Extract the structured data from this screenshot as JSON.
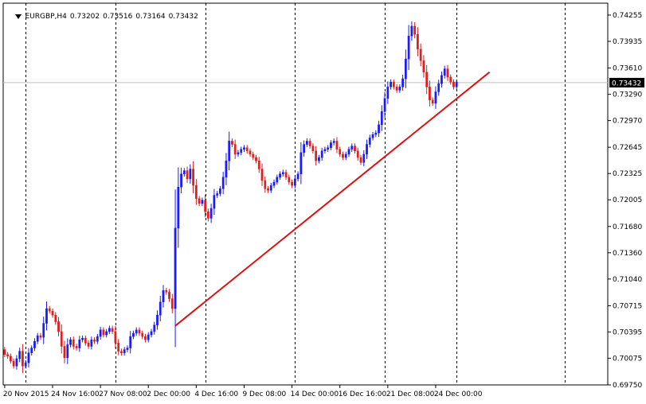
{
  "header": {
    "symbol": "EURGBP,H4",
    "open": "0.73202",
    "high": "0.73516",
    "low": "0.73164",
    "close": "0.73432"
  },
  "colors": {
    "bull": "#1a1aff",
    "bear": "#e01e1e",
    "trendline": "#dd1111",
    "grid": "#000000",
    "price_line": "#c0c0c0",
    "price_label_bg": "#000000",
    "price_label_text": "#ffffff"
  },
  "chart_data": {
    "type": "candlestick",
    "timeframe": "H4",
    "ylim": [
      0.6975,
      0.744
    ],
    "y_ticks": [
      "0.74255",
      "0.73935",
      "0.73610",
      "0.73290",
      "0.72970",
      "0.72645",
      "0.72325",
      "0.72005",
      "0.71680",
      "0.71360",
      "0.71040",
      "0.70715",
      "0.70395",
      "0.70075",
      "0.69750"
    ],
    "current_price": "0.73432",
    "x_labels": [
      "20 Nov 2015",
      "24 Nov 16:00",
      "27 Nov 08:00",
      "2 Dec 00:00",
      "4 Dec 16:00",
      "9 Dec 08:00",
      "14 Dec 00:00",
      "16 Dec 16:00",
      "21 Dec 08:00",
      "24 Dec 00:00"
    ],
    "x_label_bars": [
      0,
      16,
      32,
      48,
      64,
      80,
      96,
      112,
      128,
      144
    ],
    "grid_vertical_bars": [
      7,
      37,
      67,
      97,
      127,
      151,
      187
    ],
    "total_bar_slots": 202,
    "closes": [
      0.7012,
      0.701,
      0.7004,
      0.6998,
      0.7007,
      0.7016,
      0.6998,
      0.7002,
      0.7014,
      0.702,
      0.7028,
      0.7035,
      0.7033,
      0.705,
      0.7068,
      0.7065,
      0.706,
      0.7052,
      0.704,
      0.7022,
      0.7008,
      0.7024,
      0.703,
      0.7022,
      0.702,
      0.703,
      0.7032,
      0.7026,
      0.7022,
      0.703,
      0.7028,
      0.7034,
      0.7042,
      0.7036,
      0.704,
      0.7044,
      0.704,
      0.7026,
      0.7016,
      0.7014,
      0.7018,
      0.702,
      0.7034,
      0.7038,
      0.7042,
      0.7038,
      0.7034,
      0.703,
      0.7036,
      0.704,
      0.7048,
      0.706,
      0.7076,
      0.709,
      0.7088,
      0.708,
      0.7068,
      0.7166,
      0.7216,
      0.7232,
      0.7236,
      0.7226,
      0.7238,
      0.7218,
      0.7202,
      0.7196,
      0.72,
      0.7186,
      0.7178,
      0.719,
      0.7206,
      0.7208,
      0.7214,
      0.7228,
      0.7248,
      0.7272,
      0.7268,
      0.7256,
      0.7258,
      0.7262,
      0.7264,
      0.726,
      0.7256,
      0.7252,
      0.7248,
      0.7238,
      0.7224,
      0.7214,
      0.7212,
      0.7218,
      0.7222,
      0.7228,
      0.7232,
      0.7234,
      0.7228,
      0.7222,
      0.7218,
      0.7226,
      0.7232,
      0.7258,
      0.7268,
      0.7272,
      0.7266,
      0.726,
      0.7248,
      0.7252,
      0.726,
      0.7262,
      0.7264,
      0.727,
      0.7272,
      0.7262,
      0.7256,
      0.7252,
      0.7256,
      0.7262,
      0.7266,
      0.726,
      0.7252,
      0.7246,
      0.7256,
      0.7268,
      0.7276,
      0.728,
      0.7282,
      0.7292,
      0.7308,
      0.7324,
      0.7338,
      0.7344,
      0.7338,
      0.7334,
      0.7338,
      0.7348,
      0.7372,
      0.74,
      0.7412,
      0.7402,
      0.7384,
      0.737,
      0.7356,
      0.7338,
      0.7322,
      0.7318,
      0.7332,
      0.7342,
      0.7352,
      0.736,
      0.735,
      0.7344,
      0.7338,
      0.7344
    ],
    "trendline": {
      "points": [
        {
          "bar": 57,
          "price": 0.7047
        },
        {
          "bar": 162,
          "price": 0.7356
        }
      ]
    }
  }
}
